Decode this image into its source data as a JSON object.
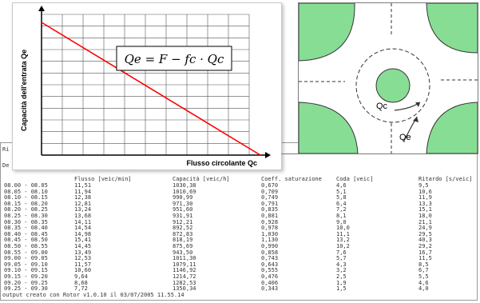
{
  "console": {
    "line1": "Ri",
    "line2": "De",
    "headers": [
      "",
      "Flusso [veic/min]",
      "Capacità [veic/h]",
      "Coeff. saturazione",
      "Coda [veic]",
      "Ritardo [s/veic]"
    ],
    "rows": [
      [
        "08.00 - 08.05",
        "11,51",
        "1030,38",
        "0,670",
        "4,6",
        "9,5"
      ],
      [
        "08.05 - 08.10",
        "11,94",
        "1010,69",
        "0,709",
        "5,1",
        "10,6"
      ],
      [
        "08.10 - 08.15",
        "12,38",
        "990,99",
        "0,749",
        "5,8",
        "11,9"
      ],
      [
        "08.15 - 08.20",
        "12,81",
        "971,30",
        "0,791",
        "6,4",
        "13,3"
      ],
      [
        "08.20 - 08.25",
        "13,24",
        "951,60",
        "0,835",
        "7,2",
        "15,1"
      ],
      [
        "08.25 - 08.30",
        "13,68",
        "931,91",
        "0,881",
        "8,1",
        "18,0"
      ],
      [
        "08.30 - 08.35",
        "14,11",
        "912,21",
        "0,928",
        "9,0",
        "21,1"
      ],
      [
        "08.35 - 08.40",
        "14,54",
        "892,52",
        "0,978",
        "10,0",
        "24,9"
      ],
      [
        "08.40 - 08.45",
        "14,98",
        "872,83",
        "1,030",
        "11,1",
        "29,5"
      ],
      [
        "08.45 - 08.50",
        "15,41",
        "818,19",
        "1,130",
        "13,2",
        "40,3"
      ],
      [
        "08.50 - 08.55",
        "14,45",
        "875,69",
        "0,990",
        "10,2",
        "29,2"
      ],
      [
        "08.55 - 09.00",
        "13,49",
        "943,50",
        "0,858",
        "7,6",
        "16,7"
      ],
      [
        "09.00 - 09.05",
        "12,53",
        "1011,30",
        "0,743",
        "5,7",
        "11,5"
      ],
      [
        "09.05 - 09.10",
        "11,57",
        "1079,11",
        "0,643",
        "4,3",
        "8,5"
      ],
      [
        "09.10 - 09.15",
        "10,60",
        "1146,92",
        "0,555",
        "3,2",
        "6,7"
      ],
      [
        "09.15 - 09.20",
        "9,64",
        "1214,72",
        "0,476",
        "2,5",
        "5,5"
      ],
      [
        "09.20 - 09.25",
        "8,68",
        "1282,53",
        "0,406",
        "1,9",
        "4,6"
      ],
      [
        "09.25 - 09.30",
        "7,72",
        "1350,34",
        "0,343",
        "1,5",
        "4,0"
      ]
    ],
    "footer": "output creato con Rotor v1.0.10 il 03/07/2005 11.55.14"
  },
  "chart": {
    "ylabel": "Capacità dell'entrata Qe",
    "xlabel": "Flusso circolante Qc",
    "formula": "Qe = F − fc · Qc",
    "line_color": "#ff0000",
    "grid_color": "#555555",
    "chart_data": {
      "type": "line",
      "title": "",
      "xlabel": "Flusso circolante Qc",
      "ylabel": "Capacità dell'entrata Qe",
      "series": [
        {
          "values": [
            [
              0,
              1
            ],
            [
              1,
              0
            ]
          ]
        }
      ]
    }
  },
  "diagram": {
    "label_qc": "Qc",
    "label_qe": "Qe",
    "green": "#88dd95",
    "road": "#ffffff"
  }
}
